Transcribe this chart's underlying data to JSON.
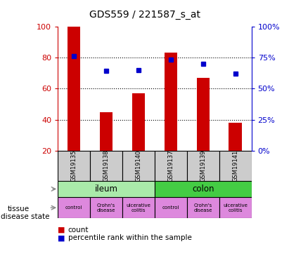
{
  "title": "GDS559 / 221587_s_at",
  "samples": [
    "GSM19135",
    "GSM19138",
    "GSM19140",
    "GSM19137",
    "GSM19139",
    "GSM19141"
  ],
  "counts": [
    100,
    45,
    57,
    83,
    67,
    38
  ],
  "percentiles": [
    76,
    64,
    65,
    73,
    70,
    62
  ],
  "ymin": 20,
  "ymax": 100,
  "yticks_left": [
    20,
    40,
    60,
    80,
    100
  ],
  "yticks_right": [
    0,
    25,
    50,
    75,
    100
  ],
  "bar_color": "#cc0000",
  "dot_color": "#0000cc",
  "tissue_ileum_color": "#aaeaaa",
  "tissue_colon_color": "#44cc44",
  "disease_color": "#dd88dd",
  "sample_box_color": "#cccccc",
  "legend_count_label": "count",
  "legend_pct_label": "percentile rank within the sample",
  "tissue_row_label": "tissue",
  "disease_row_label": "disease state",
  "left_axis_color": "#cc0000",
  "right_axis_color": "#0000cc",
  "bar_width": 0.4
}
